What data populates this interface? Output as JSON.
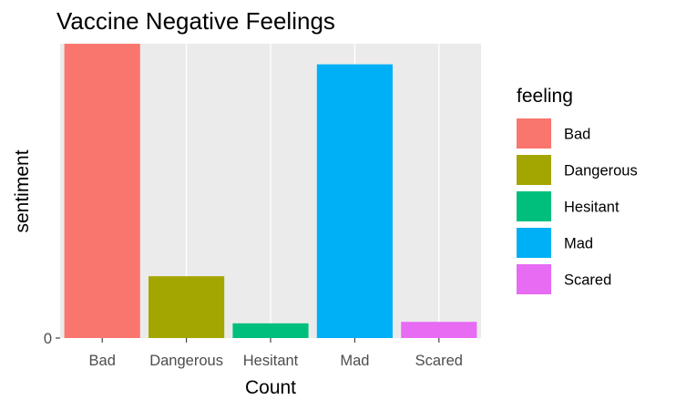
{
  "chart_data": {
    "type": "bar",
    "title": "Vaccine Negative Feelings",
    "xlabel": "Count",
    "ylabel": "sentiment",
    "categories": [
      "Bad",
      "Dangerous",
      "Hesitant",
      "Mad",
      "Scared"
    ],
    "values": [
      100,
      21,
      5,
      93,
      5.5
    ],
    "colors": [
      "#F8766D",
      "#A3A500",
      "#00BF7D",
      "#00B0F6",
      "#E76BF3"
    ],
    "ylim": [
      0,
      100
    ],
    "y_ticks": [
      0
    ],
    "y_tick_labels": [
      "0"
    ],
    "grid": true,
    "panel_background": "#EBEBEB",
    "grid_color": "#FFFFFF",
    "legend": {
      "title": "feeling",
      "position": "right",
      "items": [
        "Bad",
        "Dangerous",
        "Hesitant",
        "Mad",
        "Scared"
      ]
    }
  }
}
